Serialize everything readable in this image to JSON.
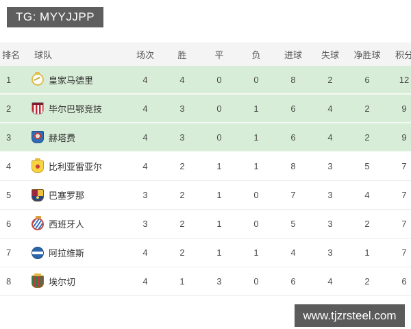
{
  "page": {
    "tg_label": "TG: MYYJJPP",
    "watermark": "www.tjzrsteel.com"
  },
  "colors": {
    "qualified_row_bg": "#d8edd8",
    "header_bg": "#f4f4f4",
    "banner_bg": "#5e5e5e"
  },
  "table": {
    "columns": [
      "排名",
      "球队",
      "场次",
      "胜",
      "平",
      "负",
      "进球",
      "失球",
      "净胜球",
      "积分"
    ],
    "rows": [
      {
        "rank": "1",
        "team": "皇家马德里",
        "crest": "real-madrid-crest",
        "crest_class": "crest c-rm",
        "played": "4",
        "win": "4",
        "draw": "0",
        "loss": "0",
        "gf": "8",
        "ga": "2",
        "gd": "6",
        "pts": "12"
      },
      {
        "rank": "2",
        "team": "毕尔巴鄂竞技",
        "crest": "athletic-bilbao-crest",
        "crest_class": "crest c-ath",
        "played": "4",
        "win": "3",
        "draw": "0",
        "loss": "1",
        "gf": "6",
        "ga": "4",
        "gd": "2",
        "pts": "9"
      },
      {
        "rank": "3",
        "team": "赫塔费",
        "crest": "getafe-crest",
        "crest_class": "crest c-get",
        "played": "4",
        "win": "3",
        "draw": "0",
        "loss": "1",
        "gf": "6",
        "ga": "4",
        "gd": "2",
        "pts": "9"
      },
      {
        "rank": "4",
        "team": "比利亚雷亚尔",
        "crest": "villarreal-crest",
        "crest_class": "crest c-vil",
        "played": "4",
        "win": "2",
        "draw": "1",
        "loss": "1",
        "gf": "8",
        "ga": "3",
        "gd": "5",
        "pts": "7"
      },
      {
        "rank": "5",
        "team": "巴塞罗那",
        "crest": "barcelona-crest",
        "crest_class": "crest c-bar",
        "played": "3",
        "win": "2",
        "draw": "1",
        "loss": "0",
        "gf": "7",
        "ga": "3",
        "gd": "4",
        "pts": "7"
      },
      {
        "rank": "6",
        "team": "西班牙人",
        "crest": "espanyol-crest",
        "crest_class": "crest c-esp",
        "played": "3",
        "win": "2",
        "draw": "1",
        "loss": "0",
        "gf": "5",
        "ga": "3",
        "gd": "2",
        "pts": "7"
      },
      {
        "rank": "7",
        "team": "阿拉维斯",
        "crest": "alaves-crest",
        "crest_class": "crest c-ala",
        "played": "4",
        "win": "2",
        "draw": "1",
        "loss": "1",
        "gf": "4",
        "ga": "3",
        "gd": "1",
        "pts": "7"
      },
      {
        "rank": "8",
        "team": "埃尔切",
        "crest": "elche-crest",
        "crest_class": "crest c-elc",
        "played": "4",
        "win": "1",
        "draw": "3",
        "loss": "0",
        "gf": "6",
        "ga": "4",
        "gd": "2",
        "pts": "6"
      }
    ]
  }
}
